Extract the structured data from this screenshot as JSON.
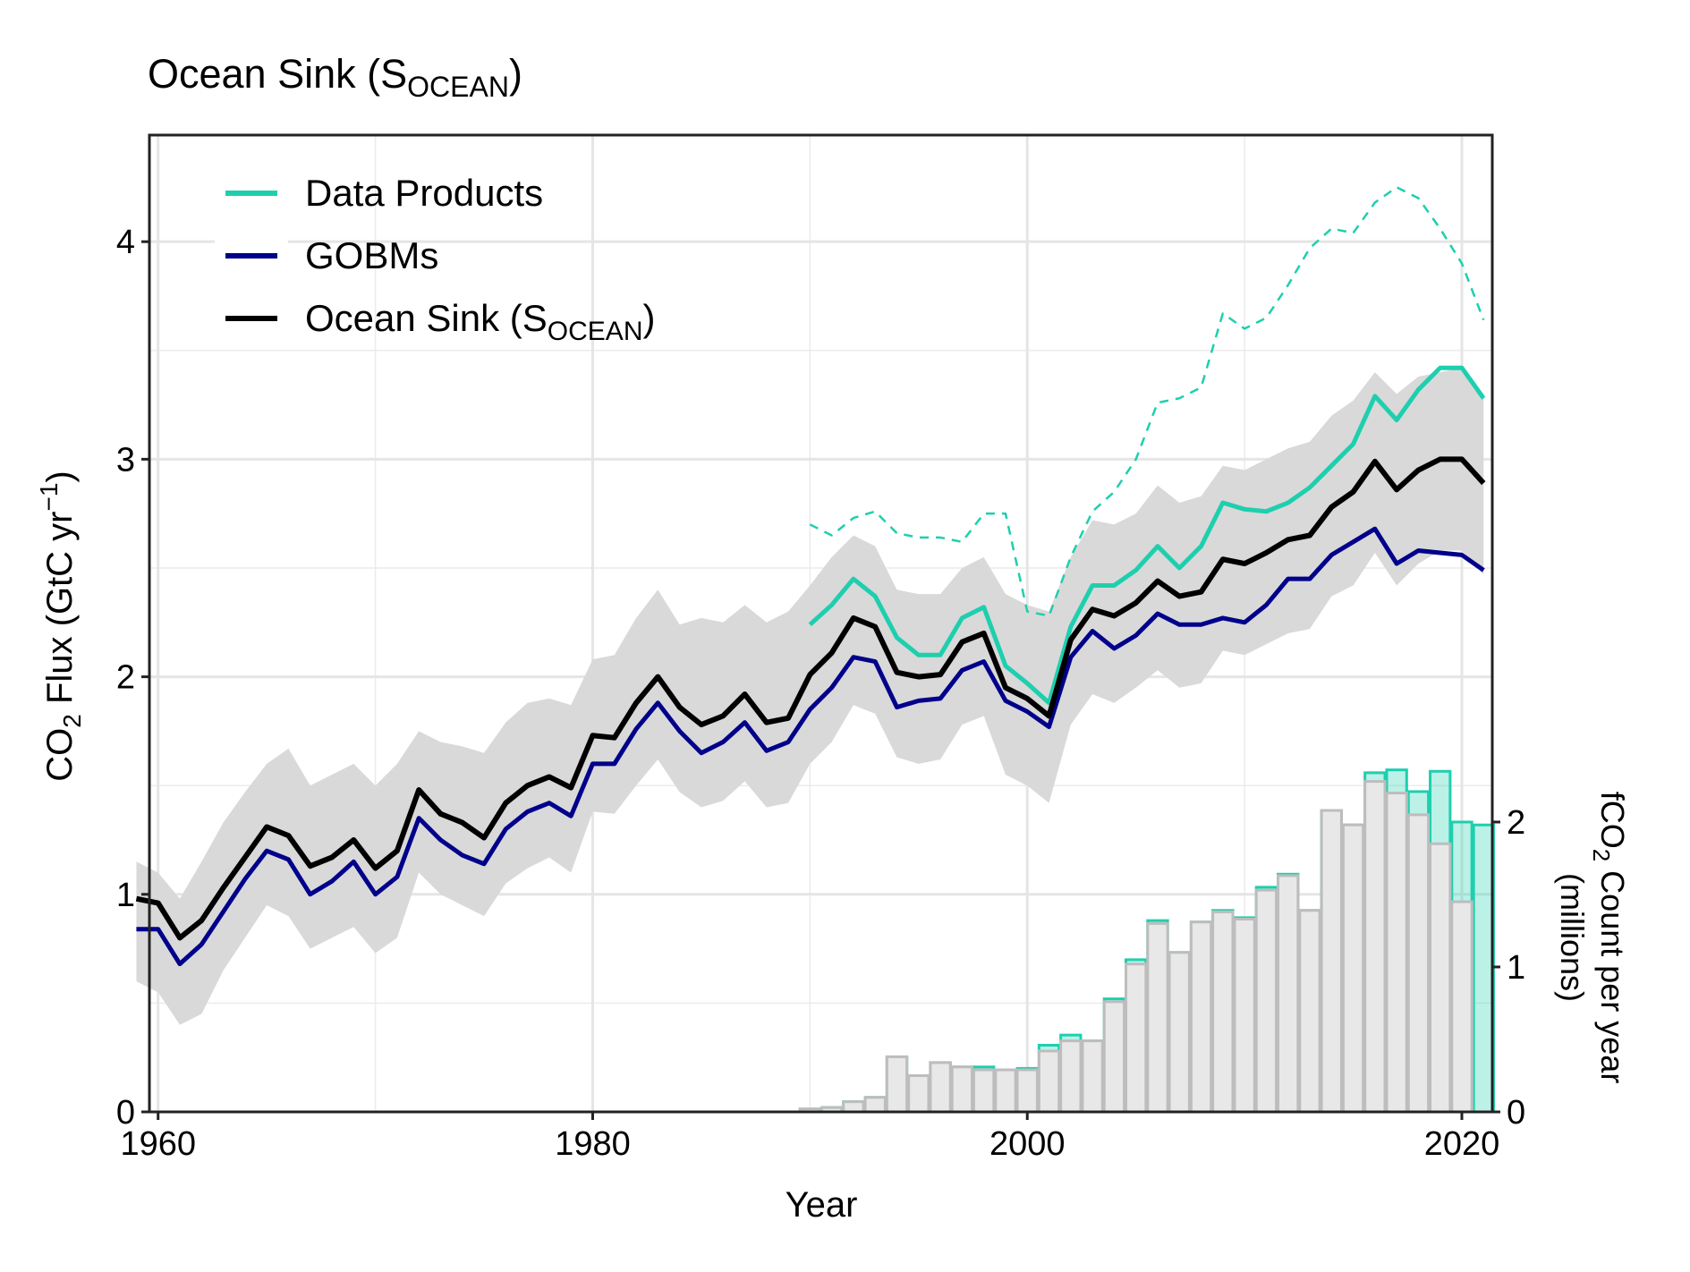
{
  "chart_data": {
    "type": "line",
    "title": [
      "Ocean Sink (S",
      "OCEAN",
      ")"
    ],
    "x_label": "Year",
    "y_label": [
      "CO",
      "2",
      " Flux (GtC yr",
      "−1",
      ")"
    ],
    "y2_label": [
      "fCO",
      "2",
      " Count per year",
      "(millions)"
    ],
    "xlim": [
      1959.6,
      2021.4
    ],
    "xticks": [
      1960,
      1980,
      2000,
      2020
    ],
    "xgrid_minor": [
      1970,
      1990,
      2010
    ],
    "ylim": [
      0,
      4.49
    ],
    "yticks": [
      0,
      1,
      2,
      3,
      4
    ],
    "ygrid_minor": [
      0.5,
      1.5,
      2.5,
      3.5
    ],
    "y2lim": [
      0,
      6.74
    ],
    "y2ticks": [
      0,
      1,
      2
    ],
    "grid": true,
    "legend": "top-left",
    "series": [
      {
        "type": "area",
        "color": "#d9d9d9",
        "x": [
          1959,
          1960,
          1961,
          1962,
          1963,
          1964,
          1965,
          1966,
          1967,
          1968,
          1969,
          1970,
          1971,
          1972,
          1973,
          1974,
          1975,
          1976,
          1977,
          1978,
          1979,
          1980,
          1981,
          1982,
          1983,
          1984,
          1985,
          1986,
          1987,
          1988,
          1989,
          1990,
          1991,
          1992,
          1993,
          1994,
          1995,
          1996,
          1997,
          1998,
          1999,
          2000,
          2001,
          2002,
          2003,
          2004,
          2005,
          2006,
          2007,
          2008,
          2009,
          2010,
          2011,
          2012,
          2013,
          2014,
          2015,
          2016,
          2017,
          2018,
          2019,
          2020,
          2021
        ],
        "lower": [
          0.6,
          0.55,
          0.4,
          0.45,
          0.65,
          0.8,
          0.95,
          0.9,
          0.75,
          0.8,
          0.85,
          0.73,
          0.8,
          1.1,
          1.0,
          0.95,
          0.9,
          1.05,
          1.12,
          1.17,
          1.1,
          1.38,
          1.37,
          1.5,
          1.62,
          1.47,
          1.4,
          1.43,
          1.52,
          1.4,
          1.42,
          1.6,
          1.7,
          1.87,
          1.83,
          1.63,
          1.6,
          1.62,
          1.78,
          1.82,
          1.55,
          1.5,
          1.42,
          1.78,
          1.92,
          1.88,
          1.95,
          2.03,
          1.95,
          1.97,
          2.12,
          2.1,
          2.15,
          2.2,
          2.22,
          2.37,
          2.42,
          2.57,
          2.42,
          2.52,
          2.58,
          2.58,
          2.47
        ],
        "upper": [
          1.15,
          1.1,
          0.98,
          1.15,
          1.33,
          1.47,
          1.6,
          1.67,
          1.5,
          1.55,
          1.6,
          1.5,
          1.6,
          1.75,
          1.7,
          1.68,
          1.65,
          1.79,
          1.88,
          1.9,
          1.87,
          2.08,
          2.1,
          2.27,
          2.4,
          2.24,
          2.27,
          2.25,
          2.33,
          2.25,
          2.3,
          2.42,
          2.55,
          2.65,
          2.6,
          2.4,
          2.38,
          2.38,
          2.5,
          2.55,
          2.38,
          2.33,
          2.3,
          2.55,
          2.72,
          2.7,
          2.75,
          2.88,
          2.8,
          2.83,
          2.97,
          2.95,
          3.0,
          3.05,
          3.08,
          3.2,
          3.27,
          3.4,
          3.3,
          3.38,
          3.4,
          3.42,
          3.3
        ]
      },
      {
        "type": "bar",
        "axis": "y2",
        "color": "#1ecfae",
        "x": [
          1990,
          1991,
          1992,
          1993,
          1994,
          1995,
          1996,
          1997,
          1998,
          1999,
          2000,
          2001,
          2002,
          2003,
          2004,
          2005,
          2006,
          2007,
          2008,
          2009,
          2010,
          2011,
          2012,
          2013,
          2014,
          2015,
          2016,
          2017,
          2018,
          2019,
          2020,
          2021
        ],
        "values": [
          0.02,
          0.03,
          0.07,
          0.1,
          0.38,
          0.25,
          0.34,
          0.31,
          0.31,
          0.29,
          0.3,
          0.46,
          0.53,
          0.49,
          0.78,
          1.05,
          1.32,
          1.1,
          1.31,
          1.39,
          1.34,
          1.55,
          1.64,
          1.39,
          2.08,
          1.98,
          2.34,
          2.36,
          2.21,
          2.35,
          2.0,
          1.98
        ]
      },
      {
        "type": "bar",
        "axis": "y2",
        "color": "#e8e8e8",
        "x": [
          1990,
          1991,
          1992,
          1993,
          1994,
          1995,
          1996,
          1997,
          1998,
          1999,
          2000,
          2001,
          2002,
          2003,
          2004,
          2005,
          2006,
          2007,
          2008,
          2009,
          2010,
          2011,
          2012,
          2013,
          2014,
          2015,
          2016,
          2017,
          2018,
          2019,
          2020,
          2021
        ],
        "values": [
          0.02,
          0.03,
          0.07,
          0.1,
          0.38,
          0.25,
          0.34,
          0.31,
          0.29,
          0.29,
          0.29,
          0.42,
          0.49,
          0.49,
          0.76,
          1.02,
          1.3,
          1.1,
          1.31,
          1.38,
          1.33,
          1.53,
          1.63,
          1.39,
          2.08,
          1.98,
          2.28,
          2.2,
          2.05,
          1.85,
          1.45,
          0
        ]
      },
      {
        "type": "line",
        "color": "#1ecfae",
        "dash": true,
        "width": 2.5,
        "x": [
          1990,
          1991,
          1992,
          1993,
          1994,
          1995,
          1996,
          1997,
          1998,
          1999,
          2000,
          2001,
          2002,
          2003,
          2004,
          2005,
          2006,
          2007,
          2008,
          2009,
          2010,
          2011,
          2012,
          2013,
          2014,
          2015,
          2016,
          2017,
          2018,
          2019,
          2020,
          2021
        ],
        "values": [
          2.7,
          2.65,
          2.73,
          2.76,
          2.66,
          2.64,
          2.64,
          2.62,
          2.75,
          2.75,
          2.3,
          2.28,
          2.55,
          2.76,
          2.85,
          3.0,
          3.26,
          3.28,
          3.33,
          3.67,
          3.6,
          3.65,
          3.8,
          3.97,
          4.06,
          4.04,
          4.18,
          4.25,
          4.2,
          4.06,
          3.9,
          3.64
        ]
      },
      {
        "type": "line",
        "name": [
          "Data Products"
        ],
        "color": "#1ecfae",
        "width": 5,
        "x": [
          1990,
          1991,
          1992,
          1993,
          1994,
          1995,
          1996,
          1997,
          1998,
          1999,
          2000,
          2001,
          2002,
          2003,
          2004,
          2005,
          2006,
          2007,
          2008,
          2009,
          2010,
          2011,
          2012,
          2013,
          2014,
          2015,
          2016,
          2017,
          2018,
          2019,
          2020,
          2021
        ],
        "values": [
          2.24,
          2.33,
          2.45,
          2.37,
          2.18,
          2.1,
          2.1,
          2.27,
          2.32,
          2.05,
          1.97,
          1.88,
          2.23,
          2.42,
          2.42,
          2.49,
          2.6,
          2.5,
          2.6,
          2.8,
          2.77,
          2.76,
          2.8,
          2.87,
          2.97,
          3.07,
          3.29,
          3.18,
          3.32,
          3.42,
          3.42,
          3.28
        ]
      },
      {
        "type": "line",
        "name": [
          "GOBMs"
        ],
        "color": "#00008b",
        "width": 5,
        "x": [
          1959,
          1960,
          1961,
          1962,
          1963,
          1964,
          1965,
          1966,
          1967,
          1968,
          1969,
          1970,
          1971,
          1972,
          1973,
          1974,
          1975,
          1976,
          1977,
          1978,
          1979,
          1980,
          1981,
          1982,
          1983,
          1984,
          1985,
          1986,
          1987,
          1988,
          1989,
          1990,
          1991,
          1992,
          1993,
          1994,
          1995,
          1996,
          1997,
          1998,
          1999,
          2000,
          2001,
          2002,
          2003,
          2004,
          2005,
          2006,
          2007,
          2008,
          2009,
          2010,
          2011,
          2012,
          2013,
          2014,
          2015,
          2016,
          2017,
          2018,
          2019,
          2020,
          2021
        ],
        "values": [
          0.84,
          0.84,
          0.68,
          0.77,
          0.92,
          1.07,
          1.2,
          1.16,
          1.0,
          1.06,
          1.15,
          1.0,
          1.08,
          1.35,
          1.25,
          1.18,
          1.14,
          1.3,
          1.38,
          1.42,
          1.36,
          1.6,
          1.6,
          1.76,
          1.88,
          1.75,
          1.65,
          1.7,
          1.79,
          1.66,
          1.7,
          1.85,
          1.95,
          2.09,
          2.07,
          1.86,
          1.89,
          1.9,
          2.03,
          2.07,
          1.89,
          1.84,
          1.77,
          2.09,
          2.21,
          2.13,
          2.19,
          2.29,
          2.24,
          2.24,
          2.27,
          2.25,
          2.33,
          2.45,
          2.45,
          2.56,
          2.62,
          2.68,
          2.52,
          2.58,
          2.57,
          2.56,
          2.49
        ]
      },
      {
        "type": "line",
        "name": [
          "Ocean Sink (S",
          "OCEAN",
          ")"
        ],
        "color": "#000000",
        "width": 6,
        "x": [
          1959,
          1960,
          1961,
          1962,
          1963,
          1964,
          1965,
          1966,
          1967,
          1968,
          1969,
          1970,
          1971,
          1972,
          1973,
          1974,
          1975,
          1976,
          1977,
          1978,
          1979,
          1980,
          1981,
          1982,
          1983,
          1984,
          1985,
          1986,
          1987,
          1988,
          1989,
          1990,
          1991,
          1992,
          1993,
          1994,
          1995,
          1996,
          1997,
          1998,
          1999,
          2000,
          2001,
          2002,
          2003,
          2004,
          2005,
          2006,
          2007,
          2008,
          2009,
          2010,
          2011,
          2012,
          2013,
          2014,
          2015,
          2016,
          2017,
          2018,
          2019,
          2020,
          2021
        ],
        "values": [
          0.98,
          0.96,
          0.8,
          0.88,
          1.03,
          1.17,
          1.31,
          1.27,
          1.13,
          1.17,
          1.25,
          1.12,
          1.2,
          1.48,
          1.37,
          1.33,
          1.26,
          1.42,
          1.5,
          1.54,
          1.49,
          1.73,
          1.72,
          1.88,
          2.0,
          1.86,
          1.78,
          1.82,
          1.92,
          1.79,
          1.81,
          2.01,
          2.11,
          2.27,
          2.23,
          2.02,
          2.0,
          2.01,
          2.16,
          2.2,
          1.95,
          1.9,
          1.82,
          2.17,
          2.31,
          2.28,
          2.34,
          2.44,
          2.37,
          2.39,
          2.54,
          2.52,
          2.57,
          2.63,
          2.65,
          2.78,
          2.85,
          2.99,
          2.86,
          2.95,
          3.0,
          3.0,
          2.89
        ]
      }
    ]
  }
}
